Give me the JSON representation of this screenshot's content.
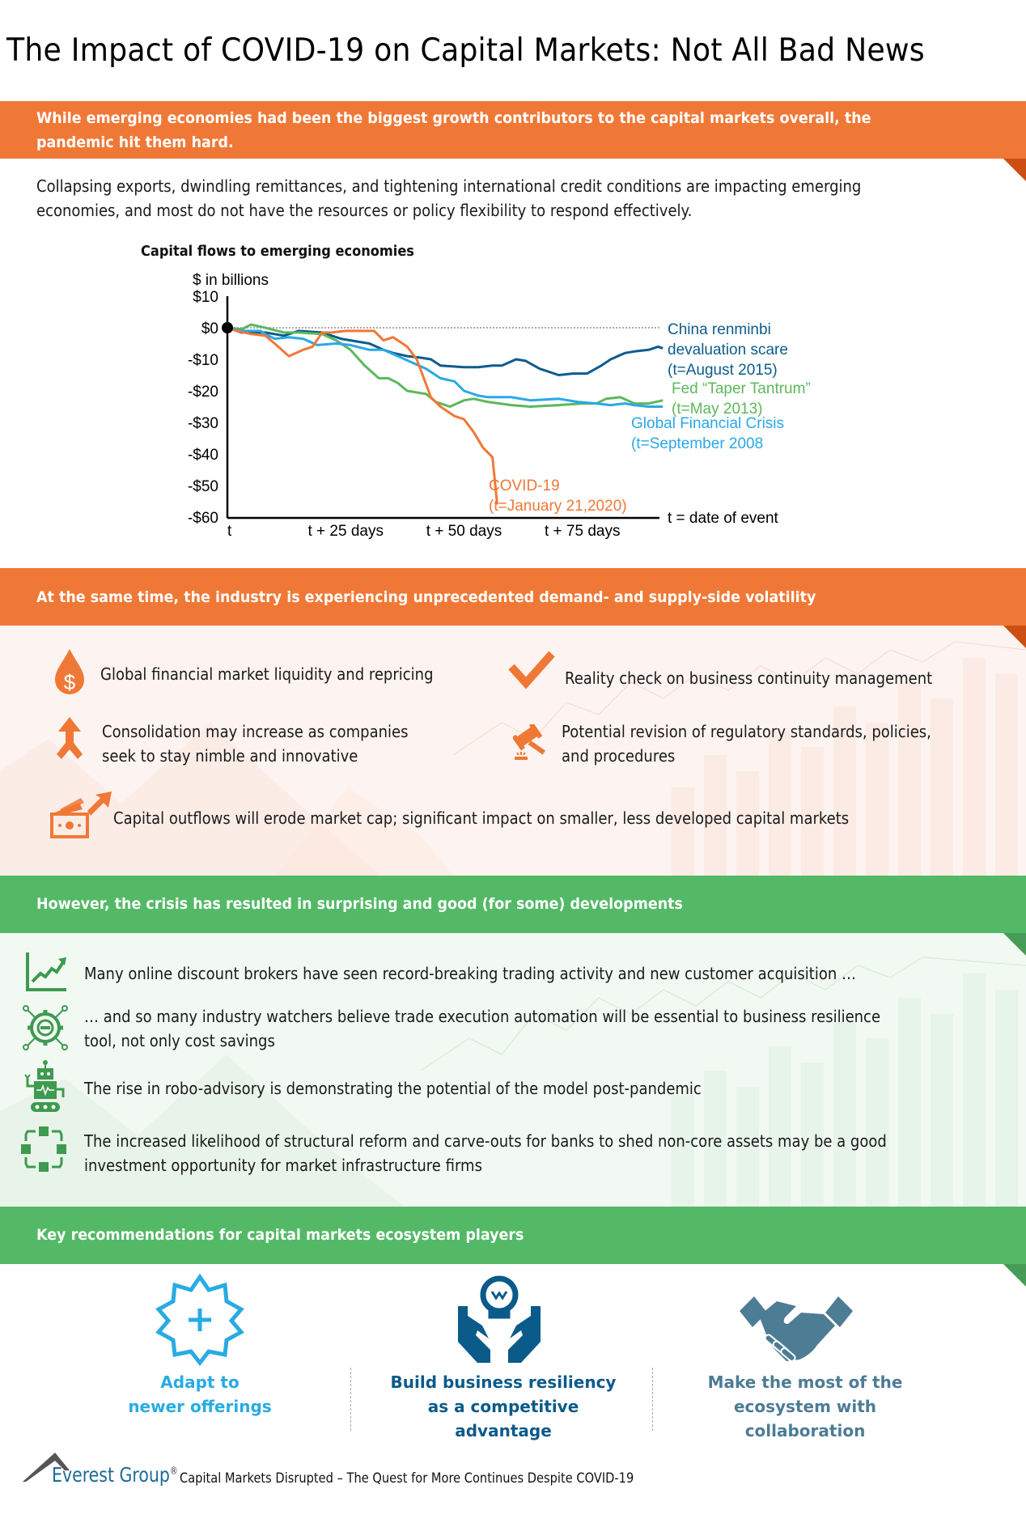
{
  "title": "The Impact of COVID-19 on Capital Markets: Not All Bad News",
  "colors": {
    "orange": "#f07836",
    "orange_dark": "#cc4e13",
    "green": "#53b966",
    "green_dark": "#459c57",
    "orange_bg": "#fdf3f0",
    "green_bg": "#f1f9f2",
    "china": "#0d5c8c",
    "fed": "#5cb85c",
    "gfc": "#29a8e8",
    "covid": "#f07836",
    "light_blue": "#29abe2",
    "dark_blue": "#0a5a8a",
    "slate_blue": "#4d7c95"
  },
  "section1": {
    "banner": [
      "While emerging economies had been the biggest growth contributors to the capital markets overall, the",
      "pandemic hit them hard."
    ],
    "body": [
      "Collapsing exports, dwindling remittances, and tightening international credit conditions are impacting emerging",
      "economies, and most do not have the resources or policy flexibility to respond effectively."
    ]
  },
  "chart_data": {
    "type": "line",
    "title": "Capital flows to emerging economies",
    "ylabel": "$ in billions",
    "xlabel": "t = date of event",
    "ylim": [
      -60,
      10
    ],
    "xlim": [
      0,
      92
    ],
    "yticks": [
      "$10",
      "$0",
      "-$10",
      "-$20",
      "-$30",
      "-$40",
      "-$50",
      "-$60"
    ],
    "ytick_values": [
      10,
      0,
      -10,
      -20,
      -30,
      -40,
      -50,
      -60
    ],
    "xticks": [
      {
        "label": "t",
        "x": 0
      },
      {
        "label": "t + 25 days",
        "x": 25
      },
      {
        "label": "t + 50 days",
        "x": 50
      },
      {
        "label": "t + 75 days",
        "x": 75
      }
    ],
    "reference_line": {
      "y": 0,
      "style": "dotted"
    },
    "origin_marker": {
      "x": 0,
      "y": 0
    },
    "series": [
      {
        "name": "China renminbi devaluation scare (t=August 2015)",
        "label_lines": [
          "China renminbi",
          "devaluation scare",
          "(t=August 2015)"
        ],
        "color": "#0d5c8c",
        "x": [
          0,
          3,
          8,
          12,
          15,
          20,
          24,
          26,
          30,
          33,
          35,
          38,
          41,
          43,
          45,
          50,
          53,
          56,
          58,
          61,
          63,
          66,
          68,
          70,
          73,
          76,
          79,
          81,
          84,
          86,
          89,
          91,
          92
        ],
        "y": [
          0,
          -1.5,
          -1.5,
          -2.5,
          -1,
          -1.5,
          -3.5,
          -4,
          -5,
          -7,
          -8,
          -9,
          -9.5,
          -10,
          -12,
          -12.5,
          -12.5,
          -12,
          -12,
          -10,
          -10.5,
          -13,
          -14,
          -15,
          -14.5,
          -14.5,
          -12,
          -10,
          -8,
          -7.5,
          -7,
          -6,
          -6.5
        ]
      },
      {
        "name": "Fed “Taper Tantrum” (t=May 2013)",
        "label_lines": [
          "Fed “Taper Tantrum”",
          "(t=May 2013)"
        ],
        "color": "#5cb85c",
        "x": [
          0,
          3,
          5,
          8,
          12,
          15,
          20,
          23,
          26,
          29,
          32,
          34,
          36,
          38,
          42,
          44,
          47,
          50,
          52,
          55,
          60,
          64,
          70,
          75,
          78,
          80,
          83,
          86,
          89,
          92
        ],
        "y": [
          0,
          -0.5,
          1,
          0,
          -1.5,
          -1.5,
          -2,
          -4,
          -7,
          -12,
          -16,
          -16,
          -17.5,
          -20,
          -21,
          -23.5,
          -25,
          -23,
          -22.5,
          -23.5,
          -24.5,
          -25,
          -24.5,
          -24,
          -24,
          -22.5,
          -22,
          -24,
          -24,
          -23
        ]
      },
      {
        "name": "Global Financial Crisis (t=September 2008",
        "label_lines": [
          "Global Financial Crisis",
          "(t=September 2008"
        ],
        "color": "#29a8e8",
        "x": [
          0,
          3,
          7,
          8,
          10,
          13,
          16,
          19,
          23,
          26,
          30,
          33,
          36,
          39,
          42,
          45,
          48,
          50,
          53,
          55,
          60,
          64,
          70,
          74,
          78,
          81,
          84,
          86,
          89,
          92
        ],
        "y": [
          0,
          -1,
          -1,
          -2,
          -3.5,
          -3,
          -3.5,
          -5.5,
          -5,
          -5.5,
          -7,
          -7,
          -9,
          -11,
          -13,
          -16,
          -17,
          -20,
          -21.5,
          -22,
          -22,
          -23,
          -22.5,
          -23.5,
          -24,
          -24.5,
          -24,
          -24.5,
          -25,
          -25
        ]
      },
      {
        "name": "COVID-19 (t=January 21,2020)",
        "label_lines": [
          "COVID-19",
          "(t=January 21,2020)"
        ],
        "color": "#f07836",
        "x": [
          0,
          2,
          5,
          8,
          10,
          13,
          16,
          18,
          20,
          22,
          25,
          28,
          31,
          33,
          35,
          38,
          40,
          41,
          43,
          45,
          46,
          48,
          50,
          52,
          54,
          56,
          57
        ],
        "y": [
          0,
          -1,
          -2,
          -2.5,
          -5,
          -9,
          -7,
          -6,
          -1.5,
          -1.5,
          -1,
          -1,
          -1,
          -4,
          -3,
          -6,
          -10,
          -14,
          -22,
          -25,
          -26,
          -28,
          -29,
          -33,
          -38,
          -41,
          -56
        ]
      }
    ]
  },
  "section2": {
    "banner": "At the same time, the industry is experiencing unprecedented demand- and supply-side volatility",
    "items": [
      {
        "icon": "dollar-drop-icon",
        "lines": [
          "Global financial market liquidity and repricing"
        ]
      },
      {
        "icon": "checkmark-icon",
        "lines": [
          "Reality check on business continuity management"
        ]
      },
      {
        "icon": "merge-arrow-icon",
        "lines": [
          "Consolidation may  increase as companies",
          "seek to stay nimble and innovative"
        ]
      },
      {
        "icon": "gavel-icon",
        "lines": [
          "Potential revision of regulatory standards, policies,",
          "and procedures"
        ]
      },
      {
        "icon": "money-outflow-icon",
        "lines": [
          "Capital outflows will erode market cap; significant impact on smaller, less developed capital markets"
        ]
      }
    ]
  },
  "section3": {
    "banner": "However, the crisis has resulted in surprising and good (for some) developments",
    "items": [
      {
        "icon": "growth-chart-icon",
        "lines": [
          "Many online discount brokers have seen record-breaking trading activity and new customer acquisition …"
        ]
      },
      {
        "icon": "automation-gear-icon",
        "lines": [
          "… and so many industry watchers believe trade execution automation will be essential to business resilience",
          "tool, not only cost savings"
        ]
      },
      {
        "icon": "robot-icon",
        "lines": [
          "The rise in robo-advisory is demonstrating the potential of the model post-pandemic"
        ]
      },
      {
        "icon": "structure-nodes-icon",
        "lines": [
          "The increased likelihood of structural reform and carve-outs for banks to shed non-core assets may be a good",
          "investment opportunity for market infrastructure firms"
        ]
      }
    ]
  },
  "section4": {
    "banner": "Key recommendations for capital markets ecosystem players",
    "items": [
      {
        "icon": "badge-plus-icon",
        "lines": [
          "Adapt to",
          "newer offerings"
        ],
        "color": "#29abe2"
      },
      {
        "icon": "lightbulb-hands-icon",
        "lines": [
          "Build business resiliency",
          "as a competitive advantage"
        ],
        "color": "#0a5a8a"
      },
      {
        "icon": "handshake-icon",
        "lines": [
          "Make the most of the",
          "ecosystem with collaboration"
        ],
        "color": "#4d7c95"
      }
    ]
  },
  "footer": {
    "brand": "Everest Group",
    "registered": "®",
    "text": "Capital Markets Disrupted – The Quest for More Continues Despite COVID-19"
  }
}
